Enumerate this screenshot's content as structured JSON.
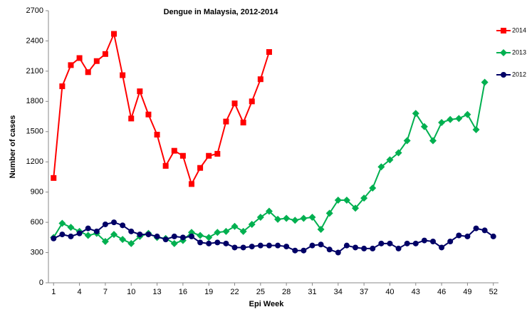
{
  "chart_data": {
    "type": "line",
    "title": "Dengue in Malaysia, 2012-2014",
    "x_label": "Epi Week",
    "y_label": "Number of cases",
    "x": [
      1,
      2,
      3,
      4,
      5,
      6,
      7,
      8,
      9,
      10,
      11,
      12,
      13,
      14,
      15,
      16,
      17,
      18,
      19,
      20,
      21,
      22,
      23,
      24,
      25,
      26,
      27,
      28,
      29,
      30,
      31,
      32,
      33,
      34,
      35,
      36,
      37,
      38,
      39,
      40,
      41,
      42,
      43,
      44,
      45,
      46,
      47,
      48,
      49,
      50,
      51,
      52
    ],
    "xlim": [
      0.4,
      52.6
    ],
    "xticks": [
      1,
      4,
      7,
      10,
      13,
      16,
      19,
      22,
      25,
      28,
      31,
      34,
      37,
      40,
      43,
      46,
      49,
      52
    ],
    "ylim": [
      0,
      2700
    ],
    "yticks": [
      0,
      300,
      600,
      900,
      1200,
      1500,
      1800,
      2100,
      2400,
      2700
    ],
    "legend": "right",
    "series": [
      {
        "name": "2014",
        "color": "#ff0000",
        "marker": "square",
        "values": [
          1040,
          1950,
          2160,
          2230,
          2090,
          2200,
          2270,
          2470,
          2060,
          1630,
          1900,
          1670,
          1470,
          1160,
          1310,
          1260,
          980,
          1140,
          1260,
          1280,
          1600,
          1780,
          1590,
          1800,
          2020,
          2290,
          null,
          null,
          null,
          null,
          null,
          null,
          null,
          null,
          null,
          null,
          null,
          null,
          null,
          null,
          null,
          null,
          null,
          null,
          null,
          null,
          null,
          null,
          null,
          null,
          null,
          null
        ]
      },
      {
        "name": "2013",
        "color": "#00b050",
        "marker": "diamond",
        "values": [
          450,
          590,
          550,
          510,
          470,
          490,
          410,
          480,
          430,
          390,
          460,
          490,
          450,
          440,
          390,
          420,
          500,
          470,
          450,
          500,
          510,
          560,
          510,
          580,
          650,
          710,
          630,
          640,
          620,
          640,
          650,
          530,
          690,
          820,
          820,
          740,
          840,
          940,
          1150,
          1220,
          1290,
          1410,
          1680,
          1550,
          1410,
          1590,
          1620,
          1630,
          1670,
          1520,
          1990,
          null
        ]
      },
      {
        "name": "2012",
        "color": "#000066",
        "marker": "circle",
        "values": [
          440,
          480,
          460,
          490,
          540,
          510,
          580,
          600,
          570,
          510,
          480,
          480,
          460,
          430,
          460,
          450,
          460,
          400,
          390,
          400,
          390,
          350,
          350,
          360,
          370,
          370,
          370,
          360,
          320,
          320,
          370,
          380,
          330,
          300,
          370,
          350,
          340,
          340,
          390,
          390,
          340,
          390,
          390,
          420,
          410,
          350,
          410,
          470,
          460,
          540,
          520,
          460
        ]
      }
    ]
  }
}
